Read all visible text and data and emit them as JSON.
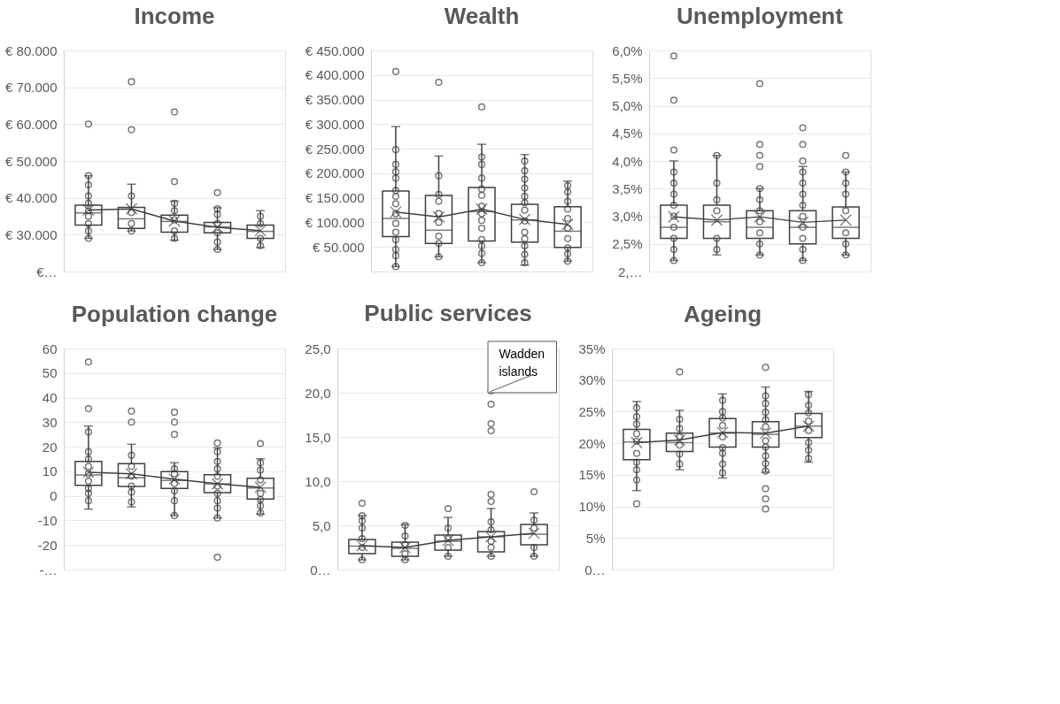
{
  "chart_data": [
    {
      "type": "box",
      "title": "Income",
      "categories": [
        null,
        null,
        null,
        null,
        null
      ],
      "ylim": [
        20000,
        80000
      ],
      "yticks": [
        {
          "value": 20000,
          "label": "€…"
        },
        {
          "value": 30000,
          "label": "€ 30.000"
        },
        {
          "value": 40000,
          "label": "€ 40.000"
        },
        {
          "value": 50000,
          "label": "€ 50.000"
        },
        {
          "value": 60000,
          "label": "€ 60.000"
        },
        {
          "value": 70000,
          "label": "€ 70.000"
        },
        {
          "value": 80000,
          "label": "€ 80.000"
        }
      ],
      "grid": "y",
      "series": [
        {
          "type": "box",
          "color": "#404040",
          "boxes": [
            {
              "low": 29000,
              "q1": 32600,
              "median": 35900,
              "q3": 38000,
              "high": 46000,
              "mean": 36700,
              "outliers": [
                60000,
                46000,
                43500,
                40500,
                38500,
                36500,
                35000,
                33000,
                31000,
                29000
              ]
            },
            {
              "low": 31000,
              "q1": 31700,
              "median": 34300,
              "q3": 37400,
              "high": 43700,
              "mean": 37000,
              "outliers": [
                71500,
                58500,
                40500,
                36000,
                33000,
                31000
              ]
            },
            {
              "low": 28500,
              "q1": 30700,
              "median": 33600,
              "q3": 35300,
              "high": 39100,
              "mean": 33700,
              "outliers": [
                63300,
                44400,
                38500,
                36500,
                34000,
                31000,
                29000
              ]
            },
            {
              "low": 26000,
              "q1": 30500,
              "median": 32100,
              "q3": 33300,
              "high": 37300,
              "mean": 32000,
              "outliers": [
                41400,
                37000,
                35500,
                33000,
                30500,
                28000,
                26000
              ]
            },
            {
              "low": 26500,
              "q1": 29000,
              "median": 30900,
              "q3": 32600,
              "high": 36500,
              "mean": 31100,
              "outliers": [
                35000,
                33000,
                29000,
                27000
              ]
            }
          ]
        },
        {
          "type": "line",
          "color": "#404040",
          "values": [
            36700,
            37000,
            33700,
            32000,
            31100
          ]
        }
      ]
    },
    {
      "type": "box",
      "title": "Wealth",
      "categories": [
        null,
        null,
        null,
        null,
        null
      ],
      "ylim": [
        0,
        450000
      ],
      "yticks": [
        {
          "value": 50000,
          "label": "€ 50.000"
        },
        {
          "value": 100000,
          "label": "€ 100.000"
        },
        {
          "value": 150000,
          "label": "€ 150.000"
        },
        {
          "value": 200000,
          "label": "€ 200.000"
        },
        {
          "value": 250000,
          "label": "€ 250.000"
        },
        {
          "value": 300000,
          "label": "€ 300.000"
        },
        {
          "value": 350000,
          "label": "€ 350.000"
        },
        {
          "value": 400000,
          "label": "€ 400.000"
        },
        {
          "value": 450000,
          "label": "€ 450.000"
        }
      ],
      "grid": "y",
      "series": [
        {
          "type": "box",
          "color": "#404040",
          "boxes": [
            {
              "low": 10000,
              "q1": 71000,
              "median": 108000,
              "q3": 164000,
              "high": 295000,
              "mean": 121000,
              "outliers": [
                407000,
                248000,
                218000,
                203000,
                190000,
                165000,
                153000,
                138000,
                118000,
                98000,
                80000,
                65000,
                45000,
                32000,
                10000
              ]
            },
            {
              "low": 30000,
              "q1": 57000,
              "median": 84000,
              "q3": 155000,
              "high": 235000,
              "mean": 111000,
              "outliers": [
                385000,
                195000,
                157000,
                143000,
                118000,
                100000,
                72000,
                57000,
                30000
              ]
            },
            {
              "low": 18000,
              "q1": 62000,
              "median": 122000,
              "q3": 171000,
              "high": 259000,
              "mean": 127000,
              "outliers": [
                335000,
                233000,
                218000,
                190000,
                168000,
                155000,
                133000,
                118000,
                104000,
                88000,
                65000,
                52000,
                37000,
                18000
              ]
            },
            {
              "low": 13000,
              "q1": 60000,
              "median": 105000,
              "q3": 137000,
              "high": 238000,
              "mean": 106000,
              "outliers": [
                225000,
                205000,
                188000,
                170000,
                153000,
                140000,
                125000,
                103000,
                80000,
                67000,
                52000,
                35000,
                18000
              ]
            },
            {
              "low": 21000,
              "q1": 49000,
              "median": 82000,
              "q3": 132000,
              "high": 184000,
              "mean": 96000,
              "outliers": [
                175000,
                162000,
                143000,
                127000,
                108000,
                88000,
                67000,
                48000,
                36000,
                21000
              ]
            }
          ]
        },
        {
          "type": "line",
          "color": "#404040",
          "values": [
            121000,
            111000,
            127000,
            106000,
            96000
          ]
        }
      ]
    },
    {
      "type": "box",
      "title": "Unemployment",
      "categories": [
        null,
        null,
        null,
        null,
        null
      ],
      "ylim": [
        2.0,
        6.0
      ],
      "yticks": [
        {
          "value": 2.0,
          "label": "2,…"
        },
        {
          "value": 2.5,
          "label": "2,5%"
        },
        {
          "value": 3.0,
          "label": "3,0%"
        },
        {
          "value": 3.5,
          "label": "3,5%"
        },
        {
          "value": 4.0,
          "label": "4,0%"
        },
        {
          "value": 4.5,
          "label": "4,5%"
        },
        {
          "value": 5.0,
          "label": "5,0%"
        },
        {
          "value": 5.5,
          "label": "5,5%"
        },
        {
          "value": 6.0,
          "label": "6,0%"
        }
      ],
      "grid": "y",
      "series": [
        {
          "type": "box",
          "color": "#404040",
          "boxes": [
            {
              "low": 2.2,
              "q1": 2.6,
              "median": 2.8,
              "q3": 3.2,
              "high": 4.0,
              "mean": 2.99,
              "outliers": [
                5.9,
                5.1,
                4.2,
                3.8,
                3.6,
                3.4,
                3.2,
                3.0,
                2.8,
                2.6,
                2.4,
                2.2
              ]
            },
            {
              "low": 2.3,
              "q1": 2.6,
              "median": 2.9,
              "q3": 3.2,
              "high": 4.1,
              "mean": 2.93,
              "outliers": [
                4.1,
                3.6,
                3.3,
                3.1,
                2.6,
                2.4
              ]
            },
            {
              "low": 2.3,
              "q1": 2.6,
              "median": 2.8,
              "q3": 3.1,
              "high": 3.5,
              "mean": 2.99,
              "outliers": [
                5.4,
                4.3,
                4.1,
                3.9,
                3.5,
                3.3,
                3.1,
                2.9,
                2.7,
                2.5,
                2.3
              ]
            },
            {
              "low": 2.2,
              "q1": 2.5,
              "median": 2.8,
              "q3": 3.1,
              "high": 3.9,
              "mean": 2.89,
              "outliers": [
                4.6,
                4.3,
                4.0,
                3.8,
                3.6,
                3.4,
                3.2,
                3.0,
                2.8,
                2.6,
                2.4,
                2.2
              ]
            },
            {
              "low": 2.3,
              "q1": 2.6,
              "median": 2.8,
              "q3": 3.17,
              "high": 3.8,
              "mean": 2.93,
              "outliers": [
                4.1,
                3.8,
                3.6,
                3.4,
                3.1,
                2.7,
                2.5,
                2.3
              ]
            }
          ]
        },
        {
          "type": "line",
          "color": "#404040",
          "values": [
            2.99,
            2.93,
            2.99,
            2.89,
            2.93
          ]
        }
      ]
    },
    {
      "type": "box",
      "title": "Population change",
      "categories": [
        null,
        null,
        null,
        null,
        null
      ],
      "ylim": [
        -30,
        60
      ],
      "yticks": [
        {
          "value": -30,
          "label": "-…"
        },
        -20,
        -10,
        0,
        10,
        20,
        30,
        40,
        50,
        60
      ],
      "grid": "y",
      "series": [
        {
          "type": "box",
          "color": "#404040",
          "boxes": [
            {
              "low": -5.4,
              "q1": 4.3,
              "median": 8.5,
              "q3": 14.0,
              "high": 28.4,
              "mean": 9.6,
              "outliers": [
                54.5,
                35.5,
                26,
                18,
                15,
                12,
                9,
                6,
                3,
                1,
                -2
              ]
            },
            {
              "low": -4.5,
              "q1": 3.8,
              "median": 7.4,
              "q3": 13.1,
              "high": 21.0,
              "mean": 9.0,
              "outliers": [
                34.5,
                30,
                16.5,
                12,
                8,
                4,
                1.5,
                -2.5
              ]
            },
            {
              "low": -8,
              "q1": 3.0,
              "median": 6.3,
              "q3": 9.9,
              "high": 13.5,
              "mean": 6.8,
              "outliers": [
                34,
                30,
                25,
                11,
                9,
                5,
                2,
                -2,
                -8
              ]
            },
            {
              "low": -9,
              "q1": 1.3,
              "median": 4.9,
              "q3": 8.6,
              "high": 19.6,
              "mean": 4.9,
              "outliers": [
                21.5,
                -25,
                18,
                14,
                11,
                8,
                4,
                1,
                -2,
                -5,
                -9
              ]
            },
            {
              "low": -7.4,
              "q1": -1.3,
              "median": 3.2,
              "q3": 7.2,
              "high": 15.1,
              "mean": 3.5,
              "outliers": [
                21.3,
                13.5,
                10.5,
                6.5,
                1,
                -1.5,
                -4,
                -7
              ]
            }
          ]
        },
        {
          "type": "line",
          "color": "#404040",
          "values": [
            9.6,
            9.0,
            6.8,
            4.9,
            3.5
          ]
        }
      ]
    },
    {
      "type": "box",
      "title": "Public services",
      "categories": [
        null,
        null,
        null,
        null,
        null
      ],
      "ylim": [
        0,
        25
      ],
      "yticks": [
        {
          "value": 0,
          "label": "0…"
        },
        {
          "value": 5,
          "label": "5,0"
        },
        {
          "value": 10,
          "label": "10,0"
        },
        {
          "value": 15,
          "label": "15,0"
        },
        {
          "value": 20,
          "label": "20,0"
        },
        {
          "value": 25,
          "label": "25,0"
        }
      ],
      "grid": "y",
      "annotations": [
        "Wadden islands"
      ],
      "series": [
        {
          "type": "box",
          "color": "#404040",
          "boxes": [
            {
              "low": 1.1,
              "q1": 1.8,
              "median": 2.65,
              "q3": 3.4,
              "high": 6.1,
              "mean": 2.7,
              "outliers": [
                7.5,
                6.1,
                5.5,
                4.7,
                3.5,
                2.5,
                1.1
              ]
            },
            {
              "low": 1.1,
              "q1": 1.5,
              "median": 2.4,
              "q3": 3.1,
              "high": 5.1,
              "mean": 2.5,
              "outliers": [
                5.0,
                3.8,
                2.8,
                1.8,
                1.1
              ]
            },
            {
              "low": 1.5,
              "q1": 2.2,
              "median": 3.2,
              "q3": 3.9,
              "high": 5.9,
              "mean": 3.3,
              "outliers": [
                6.9,
                4.7,
                3.5,
                2.5,
                1.5
              ]
            },
            {
              "low": 1.5,
              "q1": 2.0,
              "median": 3.7,
              "q3": 4.3,
              "high": 6.9,
              "mean": 3.7,
              "outliers": [
                20.2,
                18.7,
                16.5,
                15.7,
                8.5,
                7.7,
                5.4,
                4.5,
                3.2,
                2.5,
                1.5
              ]
            },
            {
              "low": 1.5,
              "q1": 2.8,
              "median": 4.0,
              "q3": 5.1,
              "high": 6.4,
              "mean": 4.1,
              "outliers": [
                8.8,
                5.6,
                4.7,
                2.5,
                1.5
              ]
            }
          ]
        },
        {
          "type": "line",
          "color": "#404040",
          "values": [
            2.7,
            2.5,
            3.3,
            3.7,
            4.1
          ]
        }
      ]
    },
    {
      "type": "box",
      "title": "Ageing",
      "categories": [
        null,
        null,
        null,
        null,
        null
      ],
      "ylim": [
        0,
        35
      ],
      "yticks": [
        {
          "value": 0,
          "label": "0…"
        },
        {
          "value": 5,
          "label": "5%"
        },
        {
          "value": 10,
          "label": "10%"
        },
        {
          "value": 15,
          "label": "15%"
        },
        {
          "value": 20,
          "label": "20%"
        },
        {
          "value": 25,
          "label": "25%"
        },
        {
          "value": 30,
          "label": "30%"
        },
        {
          "value": 35,
          "label": "35%"
        }
      ],
      "grid": "y",
      "series": [
        {
          "type": "box",
          "color": "#404040",
          "boxes": [
            {
              "low": 12.5,
              "q1": 17.4,
              "median": 20.2,
              "q3": 22.2,
              "high": 26.6,
              "mean": 20.1,
              "outliers": [
                10.4,
                25.6,
                24.2,
                23,
                21.5,
                20.3,
                18.4,
                17,
                15.8,
                14.2
              ]
            },
            {
              "low": 15.8,
              "q1": 18.7,
              "median": 20.1,
              "q3": 21.6,
              "high": 25.2,
              "mean": 20.5,
              "outliers": [
                31.3,
                23.8,
                22.3,
                21,
                19.7,
                18.3,
                16.7
              ]
            },
            {
              "low": 14.5,
              "q1": 19.4,
              "median": 21.6,
              "q3": 23.9,
              "high": 27.8,
              "mean": 21.7,
              "outliers": [
                26.8,
                25,
                24,
                22.8,
                21,
                19.3,
                18.4,
                16.7,
                15.3
              ]
            },
            {
              "low": 15.4,
              "q1": 19.4,
              "median": 21.4,
              "q3": 23.4,
              "high": 28.9,
              "mean": 21.6,
              "outliers": [
                32,
                12.8,
                11.2,
                9.6,
                27.5,
                26.3,
                24.9,
                23.7,
                22.6,
                20.4,
                19.4,
                18,
                16.8,
                15.6
              ]
            },
            {
              "low": 17.0,
              "q1": 20.9,
              "median": 22.7,
              "q3": 24.7,
              "high": 28.2,
              "mean": 22.7,
              "outliers": [
                27.7,
                26,
                24.8,
                23.5,
                22,
                20.1,
                18.9,
                17.6
              ]
            }
          ]
        },
        {
          "type": "line",
          "color": "#404040",
          "values": [
            20.1,
            20.5,
            21.7,
            21.6,
            22.7
          ]
        }
      ]
    }
  ]
}
